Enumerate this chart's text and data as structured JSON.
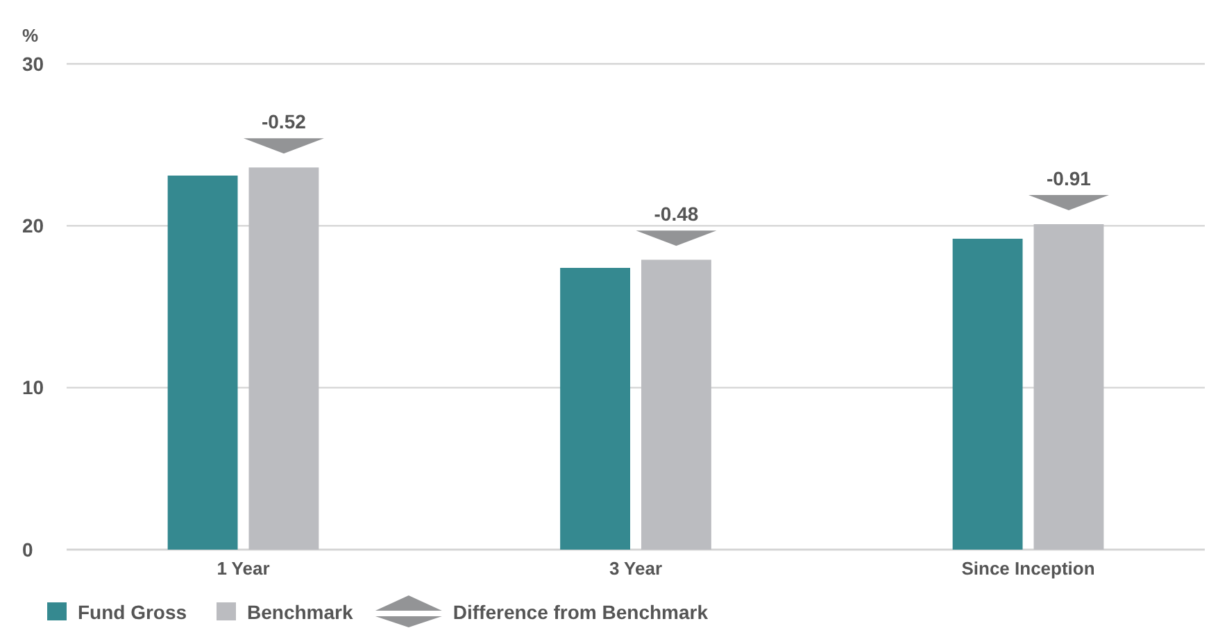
{
  "chart_data": {
    "type": "bar",
    "ylabel": "%",
    "categories": [
      "1 Year",
      "3 Year",
      "Since Inception"
    ],
    "series": [
      {
        "name": "Fund Gross",
        "color": "#358990",
        "values": [
          23.1,
          17.4,
          19.2
        ]
      },
      {
        "name": "Benchmark",
        "color": "#bbbcc0",
        "values": [
          23.6,
          17.9,
          20.1
        ]
      }
    ],
    "ylim": [
      0,
      30
    ],
    "yticks": [
      0,
      10,
      20,
      30
    ],
    "grid": "y",
    "legend": "bottom",
    "annotations": [
      "-0.52",
      "-0.48",
      "-0.91",
      "Difference from Benchmark"
    ]
  }
}
